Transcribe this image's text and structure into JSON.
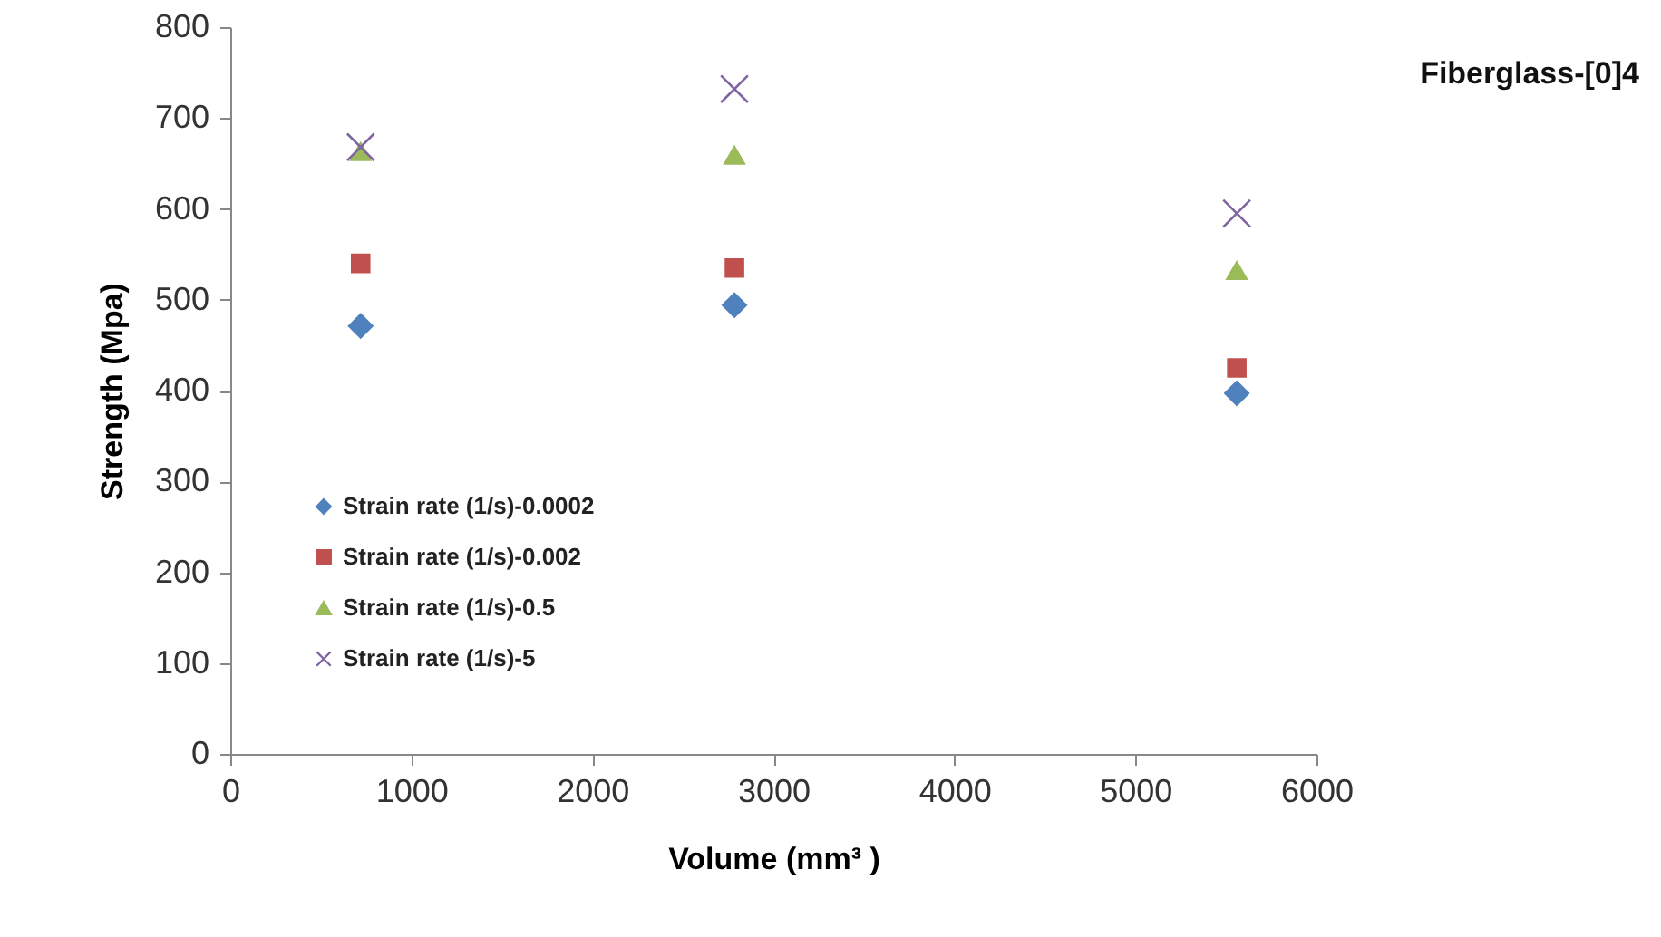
{
  "chart_data": {
    "type": "scatter",
    "title": "Fiberglass-[0]4",
    "xlabel": "Volume (mm³ )",
    "ylabel": "Strength (Mpa)",
    "x": [
      720,
      2785,
      5560
    ],
    "series": [
      {
        "name": "Strain rate (1/s)-0.0002",
        "color": "#4f81bd",
        "marker": "diamond",
        "values": [
          471,
          494,
          397
        ]
      },
      {
        "name": "Strain rate (1/s)-0.002",
        "color": "#c0504d",
        "marker": "square",
        "values": [
          540,
          535,
          425
        ]
      },
      {
        "name": "Strain rate (1/s)-0.5",
        "color": "#9bbb59",
        "marker": "triangle",
        "values": [
          663,
          659,
          532
        ]
      },
      {
        "name": "Strain rate (1/s)-5",
        "color": "#8064a2",
        "marker": "cross",
        "values": [
          668,
          732,
          595
        ]
      }
    ],
    "xlim": [
      0,
      6000
    ],
    "xticks": [
      0,
      1000,
      2000,
      3000,
      4000,
      5000,
      6000
    ],
    "ylim": [
      0,
      800
    ],
    "yticks": [
      0,
      100,
      200,
      300,
      400,
      500,
      600,
      700,
      800
    ],
    "grid": false,
    "legend": "bottom left"
  }
}
